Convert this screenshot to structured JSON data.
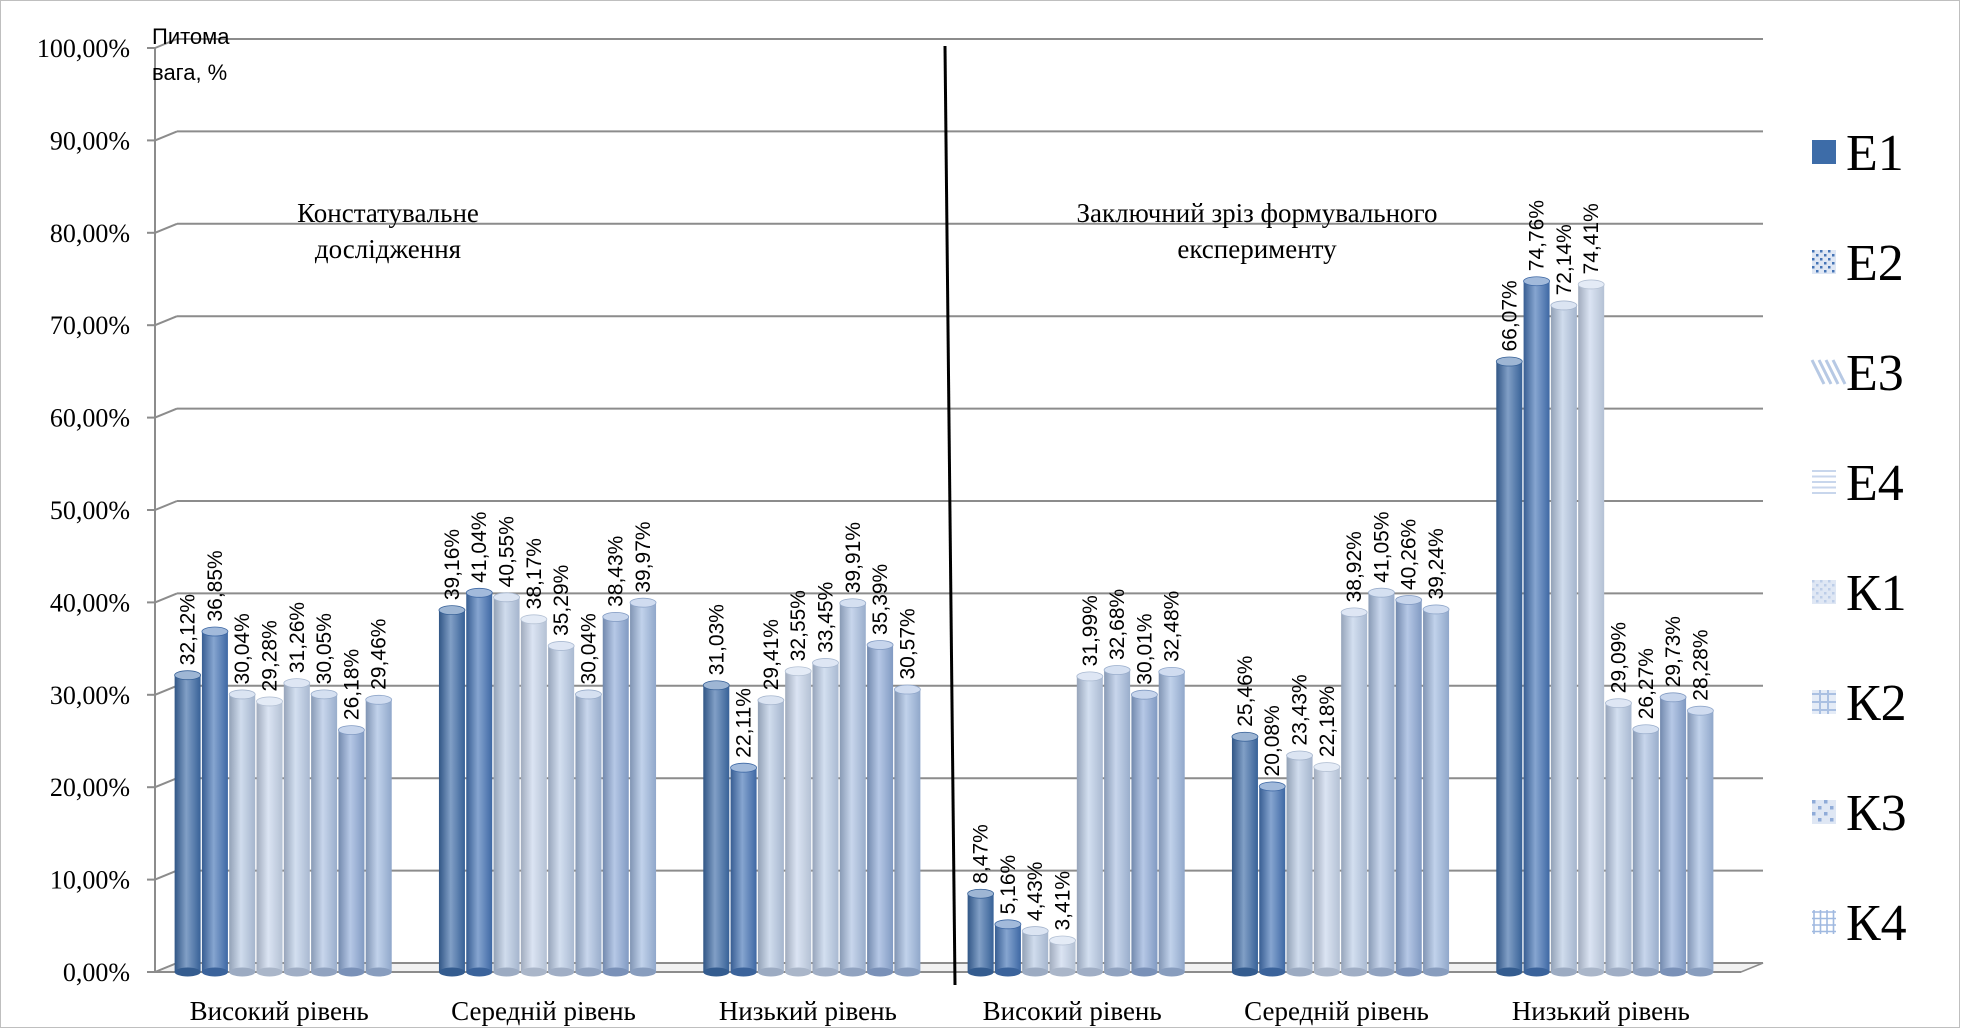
{
  "chart_data": {
    "type": "bar",
    "ylabel": "Питома вага, %",
    "ylim": [
      0,
      100
    ],
    "yticks": [
      "0,00%",
      "10,00%",
      "20,00%",
      "30,00%",
      "40,00%",
      "50,00%",
      "60,00%",
      "70,00%",
      "80,00%",
      "90,00%",
      "100,00%"
    ],
    "grid": true,
    "legend_position": "right",
    "categories": [
      "Високий рівень",
      "Середній рівень",
      "Низький рівень",
      "Високий рівень",
      "Середній рівень",
      "Низький рівень"
    ],
    "groups": [
      {
        "annotation": [
          "Констатувальне",
          "дослідження"
        ]
      },
      {
        "annotation": [
          "Заключний зріз формувального",
          "експерименту"
        ]
      }
    ],
    "series": [
      {
        "name": "Е1",
        "color": "#3d6ca8",
        "values": [
          32.12,
          39.16,
          31.03,
          8.47,
          25.46,
          66.07
        ],
        "labels": [
          "32,12%",
          "39,16%",
          "31,03%",
          "8,47%",
          "25,46%",
          "66,07%"
        ]
      },
      {
        "name": "Е2",
        "color": "#4574b6",
        "values": [
          36.85,
          41.04,
          22.11,
          5.16,
          20.08,
          74.76
        ],
        "labels": [
          "36,85%",
          "41,04%",
          "22,11%",
          "5,16%",
          "20,08%",
          "74,76%"
        ]
      },
      {
        "name": "Е3",
        "color": "#b7c9e4",
        "values": [
          30.04,
          40.55,
          29.41,
          4.43,
          23.43,
          72.14
        ],
        "labels": [
          "30,04%",
          "40,55%",
          "29,41%",
          "4,43%",
          "23,43%",
          "72,14%"
        ]
      },
      {
        "name": "Е4",
        "color": "#c8d6ec",
        "values": [
          29.28,
          38.17,
          32.55,
          3.41,
          22.18,
          74.41
        ],
        "labels": [
          "29,28%",
          "38,17%",
          "32,55%",
          "3,41%",
          "22,18%",
          "74,41%"
        ]
      },
      {
        "name": "К1",
        "color": "#bccde8",
        "values": [
          31.26,
          35.29,
          33.45,
          31.99,
          38.92,
          29.09
        ],
        "labels": [
          "31,26%",
          "35,29%",
          "33,45%",
          "31,99%",
          "38,92%",
          "29,09%"
        ]
      },
      {
        "name": "К2",
        "color": "#aac0e2",
        "values": [
          30.05,
          30.04,
          39.91,
          32.68,
          41.05,
          26.27
        ],
        "labels": [
          "30,05%",
          "30,04%",
          "39,91%",
          "32,68%",
          "41,05%",
          "26,27%"
        ]
      },
      {
        "name": "К3",
        "color": "#8fabd8",
        "values": [
          26.18,
          38.43,
          35.39,
          30.01,
          40.26,
          29.73
        ],
        "labels": [
          "26,18%",
          "38,43%",
          "35,39%",
          "30,01%",
          "40,26%",
          "29,73%"
        ]
      },
      {
        "name": "К4",
        "color": "#a0b9e0",
        "values": [
          29.46,
          39.97,
          30.57,
          32.48,
          39.24,
          28.28
        ],
        "labels": [
          "29,46%",
          "39,97%",
          "30,57%",
          "32,48%",
          "39,24%",
          "28,28%"
        ]
      }
    ]
  }
}
